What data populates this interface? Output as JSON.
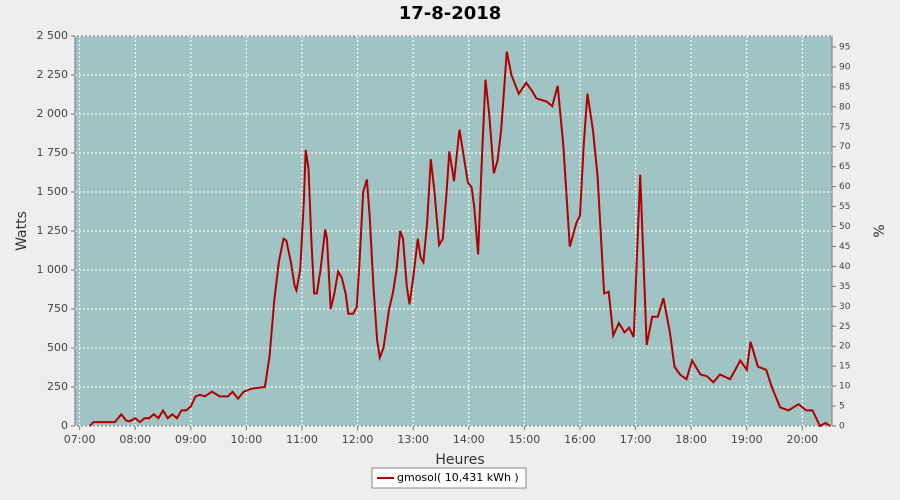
{
  "chart_data": {
    "type": "line",
    "title": "17-8-2018",
    "x_label": "Heures",
    "y_label": "Watts",
    "y2_label": "%",
    "x": [
      "07:11",
      "07:15",
      "07:38",
      "07:45",
      "07:50",
      "07:54",
      "08:00",
      "08:05",
      "08:10",
      "08:15",
      "08:20",
      "08:25",
      "08:30",
      "08:35",
      "08:40",
      "08:45",
      "08:50",
      "08:55",
      "09:00",
      "09:05",
      "09:10",
      "09:15",
      "09:23",
      "09:31",
      "09:40",
      "09:45",
      "09:51",
      "09:57",
      "10:06",
      "10:20",
      "10:25",
      "10:30",
      "10:35",
      "10:40",
      "10:43",
      "10:48",
      "10:52",
      "10:54",
      "10:58",
      "11:02",
      "11:04",
      "11:07",
      "11:10",
      "11:13",
      "11:16",
      "11:20",
      "11:25",
      "11:27",
      "11:31",
      "11:35",
      "11:39",
      "11:43",
      "11:47",
      "11:50",
      "11:55",
      "11:59",
      "12:02",
      "12:06",
      "12:10",
      "12:13",
      "12:17",
      "12:21",
      "12:24",
      "12:28",
      "12:34",
      "12:38",
      "12:42",
      "12:46",
      "12:49",
      "12:53",
      "12:56",
      "13:00",
      "13:05",
      "13:08",
      "13:11",
      "13:15",
      "13:19",
      "13:23",
      "13:28",
      "13:32",
      "13:36",
      "13:39",
      "13:44",
      "13:50",
      "13:54",
      "13:59",
      "14:03",
      "14:06",
      "14:10",
      "14:14",
      "14:18",
      "14:22",
      "14:27",
      "14:31",
      "14:35",
      "14:41",
      "14:46",
      "14:54",
      "15:02",
      "15:08",
      "15:13",
      "15:24",
      "15:30",
      "15:36",
      "15:42",
      "15:49",
      "15:56",
      "16:00",
      "16:04",
      "16:08",
      "16:14",
      "16:19",
      "16:26",
      "16:31",
      "16:36",
      "16:42",
      "16:48",
      "16:53",
      "16:58",
      "17:05",
      "17:12",
      "17:18",
      "17:24",
      "17:30",
      "17:37",
      "17:42",
      "17:48",
      "17:55",
      "18:01",
      "18:05",
      "18:10",
      "18:17",
      "18:24",
      "18:31",
      "18:42",
      "18:53",
      "19:00",
      "19:04",
      "19:12",
      "19:21",
      "19:27",
      "19:36",
      "19:45",
      "19:56",
      "20:04",
      "20:11",
      "20:19",
      "20:25",
      "20:30"
    ],
    "series": [
      {
        "name": "gmosol( 10,431 kWh )",
        "color": "#b00000",
        "values": [
          0,
          25,
          25,
          75,
          35,
          30,
          50,
          25,
          50,
          50,
          75,
          50,
          100,
          50,
          75,
          50,
          100,
          100,
          125,
          190,
          200,
          190,
          220,
          190,
          190,
          220,
          175,
          220,
          240,
          250,
          450,
          800,
          1050,
          1200,
          1190,
          1050,
          900,
          870,
          1000,
          1450,
          1770,
          1650,
          1200,
          850,
          850,
          1000,
          1260,
          1200,
          750,
          850,
          990,
          950,
          850,
          720,
          720,
          760,
          1050,
          1500,
          1580,
          1350,
          900,
          550,
          440,
          500,
          750,
          850,
          1000,
          1250,
          1200,
          900,
          780,
          950,
          1200,
          1080,
          1050,
          1300,
          1710,
          1500,
          1160,
          1200,
          1500,
          1760,
          1570,
          1900,
          1750,
          1560,
          1530,
          1400,
          1100,
          1700,
          2220,
          2000,
          1620,
          1700,
          1900,
          2400,
          2250,
          2130,
          2200,
          2150,
          2100,
          2080,
          2050,
          2180,
          1800,
          1150,
          1300,
          1350,
          1800,
          2130,
          1900,
          1600,
          850,
          860,
          580,
          660,
          600,
          630,
          570,
          1610,
          520,
          700,
          700,
          820,
          600,
          380,
          330,
          300,
          420,
          380,
          330,
          320,
          280,
          330,
          300,
          420,
          360,
          540,
          380,
          360,
          250,
          120,
          100,
          140,
          100,
          100,
          0,
          20,
          0
        ]
      }
    ],
    "xlim": [
      "06:55",
      "20:32"
    ],
    "xticks": [
      "07:00",
      "08:00",
      "09:00",
      "10:00",
      "11:00",
      "12:00",
      "13:00",
      "14:00",
      "15:00",
      "16:00",
      "17:00",
      "18:00",
      "19:00",
      "20:00"
    ],
    "ylim": [
      0,
      2500
    ],
    "yticks": [
      0,
      250,
      500,
      750,
      {
        "value": 1000,
        "label": "1 000"
      },
      {
        "value": 1250,
        "label": "1 250"
      },
      {
        "value": 1500,
        "label": "1 500"
      },
      {
        "value": 1750,
        "label": "1 750"
      },
      {
        "value": 2000,
        "label": "2 000"
      },
      {
        "value": 2250,
        "label": "2 250"
      },
      {
        "value": 2500,
        "label": "2 500"
      }
    ],
    "y2lim": [
      0,
      97.75
    ],
    "y2ticks": [
      0,
      5,
      10,
      15,
      20,
      25,
      30,
      35,
      40,
      45,
      50,
      55,
      60,
      65,
      70,
      75,
      80,
      85,
      90,
      95
    ],
    "grid": true,
    "legend": "bottom"
  }
}
